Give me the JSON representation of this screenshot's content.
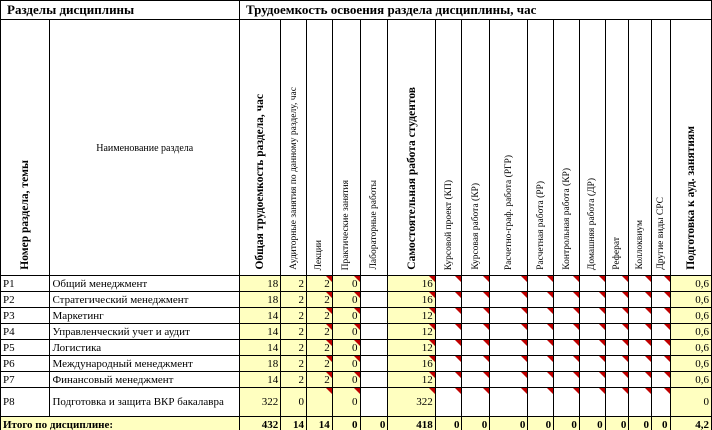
{
  "table": {
    "group_headers": [
      "Разделы дисциплины",
      "Трудоемкость освоения раздела дисциплины, час"
    ],
    "columns": [
      "Номер раздела, темы",
      "Наименование раздела",
      "Общая трудоемкость раздела, час",
      "Аудиторные занятия по данному разделу, час",
      "Лекции",
      "Практические занятия",
      "Лабораторные работы",
      "Самостоятельная работа студентов",
      "Курсовой проект (КП)",
      "Курсовая работа (КР)",
      "Расчетно-граф. работа (РГР)",
      "Расчетная работа (РР)",
      "Контрольная работа (КР)",
      "Домашняя работа (ДР)",
      "Реферат",
      "Коллоквиум",
      "Другие виды СРС",
      "Подготовка к ауд. занятиям"
    ],
    "rows": [
      {
        "num": "P1",
        "name": "Общий менеджмент",
        "values": [
          "18",
          "2",
          "2",
          "0",
          null,
          "16",
          null,
          null,
          null,
          null,
          null,
          null,
          null,
          null,
          null,
          "0,6"
        ]
      },
      {
        "num": "P2",
        "name": "Стратегический менеджмент",
        "values": [
          "18",
          "2",
          "2",
          "0",
          null,
          "16",
          null,
          null,
          null,
          null,
          null,
          null,
          null,
          null,
          null,
          "0,6"
        ]
      },
      {
        "num": "P3",
        "name": "Маркетинг",
        "values": [
          "14",
          "2",
          "2",
          "0",
          null,
          "12",
          null,
          null,
          null,
          null,
          null,
          null,
          null,
          null,
          null,
          "0,6"
        ]
      },
      {
        "num": "P4",
        "name": "Управленческий учет и аудит",
        "values": [
          "14",
          "2",
          "2",
          "0",
          null,
          "12",
          null,
          null,
          null,
          null,
          null,
          null,
          null,
          null,
          null,
          "0,6"
        ]
      },
      {
        "num": "P5",
        "name": "Логистика",
        "values": [
          "14",
          "2",
          "2",
          "0",
          null,
          "12",
          null,
          null,
          null,
          null,
          null,
          null,
          null,
          null,
          null,
          "0,6"
        ]
      },
      {
        "num": "P6",
        "name": "Международный менеджмент",
        "values": [
          "18",
          "2",
          "2",
          "0",
          null,
          "16",
          null,
          null,
          null,
          null,
          null,
          null,
          null,
          null,
          null,
          "0,6"
        ]
      },
      {
        "num": "P7",
        "name": "Финансовый менеджмент",
        "values": [
          "14",
          "2",
          "2",
          "0",
          null,
          "12",
          null,
          null,
          null,
          null,
          null,
          null,
          null,
          null,
          null,
          "0,6"
        ]
      },
      {
        "num": "P8",
        "name": "Подготовка и защита ВКР бакалавра",
        "values": [
          "322",
          "0",
          null,
          "0",
          null,
          "322",
          null,
          null,
          null,
          null,
          null,
          null,
          null,
          null,
          null,
          "0"
        ]
      }
    ],
    "total": {
      "label": "Итого по дисциплине:",
      "values": [
        "432",
        "14",
        "14",
        "0",
        "0",
        "418",
        "0",
        "0",
        "0",
        "0",
        "0",
        "0",
        "0",
        "0",
        "0",
        "4,2"
      ]
    }
  }
}
